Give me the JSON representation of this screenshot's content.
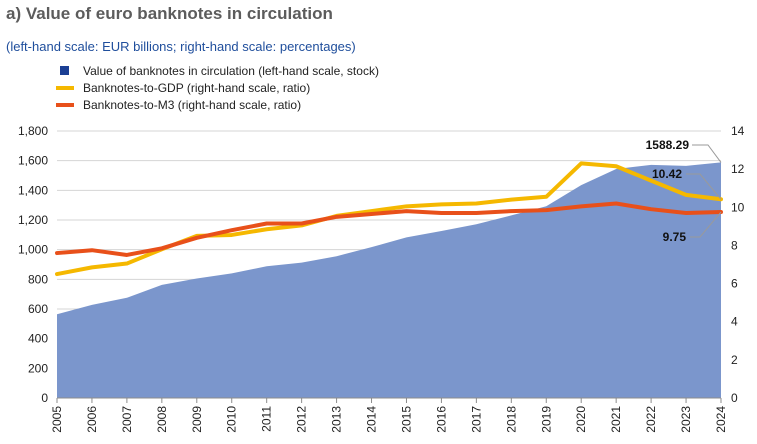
{
  "title": "a) Value of euro banknotes in circulation",
  "subtitle": "(left-hand scale: EUR billions; right-hand scale: percentages)",
  "chart_data": {
    "type": "area",
    "years": [
      "2005",
      "2006",
      "2007",
      "2008",
      "2009",
      "2010",
      "2011",
      "2012",
      "2013",
      "2014",
      "2015",
      "2016",
      "2017",
      "2018",
      "2019",
      "2020",
      "2021",
      "2022",
      "2023",
      "2024"
    ],
    "y_left": {
      "ylim": [
        0,
        1800
      ],
      "ticks": [
        "0",
        "200",
        "400",
        "600",
        "800",
        "1,000",
        "1,200",
        "1,400",
        "1,600",
        "1,800"
      ]
    },
    "y_right": {
      "ylim": [
        0,
        14
      ],
      "ticks": [
        "0",
        "2",
        "4",
        "6",
        "8",
        "10",
        "12",
        "14"
      ]
    },
    "grid": true,
    "legend_position": "top-left",
    "series": [
      {
        "name": "Value of banknotes in circulation (left-hand scale, stock)",
        "type": "area",
        "axis": "left",
        "color": "#7b96cc",
        "legend_color": "#1b3f94",
        "values": [
          565,
          628,
          676,
          763,
          806,
          840,
          888,
          913,
          956,
          1017,
          1083,
          1126,
          1171,
          1231,
          1293,
          1435,
          1544,
          1572,
          1565,
          1588.29
        ]
      },
      {
        "name": "Banknotes-to-GDP (right-hand scale, ratio)",
        "type": "line",
        "axis": "right",
        "color": "#f5b800",
        "values": [
          6.5,
          6.85,
          7.05,
          7.8,
          8.5,
          8.55,
          8.85,
          9.05,
          9.55,
          9.8,
          10.05,
          10.15,
          10.2,
          10.4,
          10.55,
          12.3,
          12.15,
          11.4,
          10.65,
          10.42
        ]
      },
      {
        "name": "Banknotes-to-M3 (right-hand scale, ratio)",
        "type": "line",
        "axis": "right",
        "color": "#e8501a",
        "values": [
          7.6,
          7.75,
          7.5,
          7.85,
          8.4,
          8.8,
          9.15,
          9.15,
          9.5,
          9.65,
          9.8,
          9.7,
          9.7,
          9.8,
          9.85,
          10.05,
          10.2,
          9.9,
          9.7,
          9.75
        ]
      }
    ],
    "annotations": [
      {
        "label": "1588.29",
        "series": 0
      },
      {
        "label": "10.42",
        "series": 1
      },
      {
        "label": "9.75",
        "series": 2
      }
    ]
  }
}
